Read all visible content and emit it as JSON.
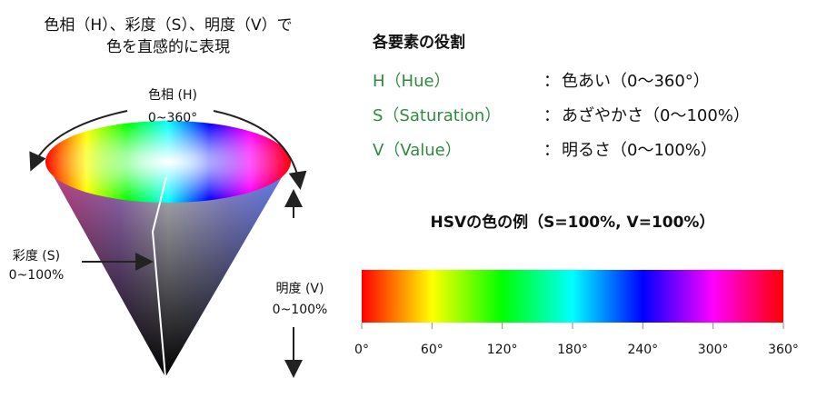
{
  "left": {
    "title_line1": "色相（H）、彩度（S）、明度（V）で",
    "title_line2": "色を直感的に表現",
    "hue_label": "色相 (H)",
    "hue_range": "0~360°",
    "sat_label": "彩度 (S)",
    "sat_range": "0~100%",
    "val_label": "明度 (V)",
    "val_range": "0~100%"
  },
  "roles": {
    "title": "各要素の役割",
    "rows": [
      {
        "key": "H（Hue）",
        "sep": "：",
        "desc": "色あい（0〜360°）"
      },
      {
        "key": "S（Saturation）",
        "sep": "：",
        "desc": "あざやかさ（0〜100%）"
      },
      {
        "key": "V（Value）",
        "sep": "：",
        "desc": "明るさ（0〜100%）"
      }
    ]
  },
  "hue_bar": {
    "title": "HSVの色の例（S=100%, V=100%）",
    "range": [
      0,
      360
    ],
    "ticks": [
      {
        "value": 0,
        "label": "0°"
      },
      {
        "value": 60,
        "label": "60°"
      },
      {
        "value": 120,
        "label": "120°"
      },
      {
        "value": 180,
        "label": "180°"
      },
      {
        "value": 240,
        "label": "240°"
      },
      {
        "value": 300,
        "label": "300°"
      },
      {
        "value": 360,
        "label": "360°"
      }
    ]
  }
}
